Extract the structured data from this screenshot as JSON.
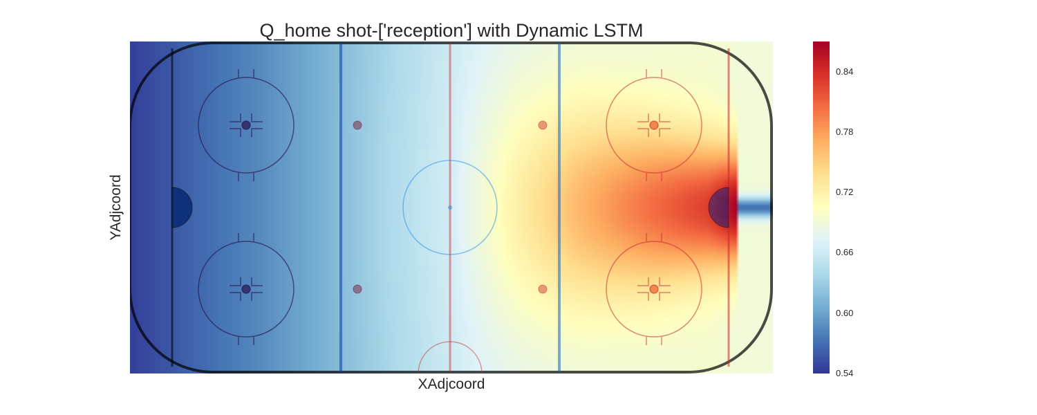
{
  "chart_data": {
    "type": "heatmap",
    "title": "Q_home shot-['reception'] with Dynamic LSTM",
    "xlabel": "XAdjcoord",
    "ylabel": "YAdjcoord",
    "xlim": [
      -100,
      100
    ],
    "ylim": [
      -42.5,
      42.5
    ],
    "grid": false,
    "colormap": "RdYlBu_r",
    "colorbar": {
      "range": [
        0.54,
        0.87
      ],
      "ticks": [
        "0.54",
        "0.60",
        "0.66",
        "0.72",
        "0.78",
        "0.84"
      ],
      "tick_values": [
        0.54,
        0.6,
        0.66,
        0.72,
        0.78,
        0.84
      ]
    },
    "value_profile_along_x": {
      "x": [
        -100,
        -80,
        -60,
        -40,
        -20,
        0,
        20,
        40,
        60,
        80,
        89
      ],
      "value_at_center_y": [
        0.545,
        0.565,
        0.585,
        0.61,
        0.64,
        0.665,
        0.72,
        0.765,
        0.8,
        0.83,
        0.87
      ],
      "value_at_boards_y": [
        0.545,
        0.565,
        0.585,
        0.61,
        0.635,
        0.66,
        0.675,
        0.685,
        0.69,
        0.695,
        0.69
      ]
    },
    "behind_goal_value_at_center_y": 0.57
  }
}
